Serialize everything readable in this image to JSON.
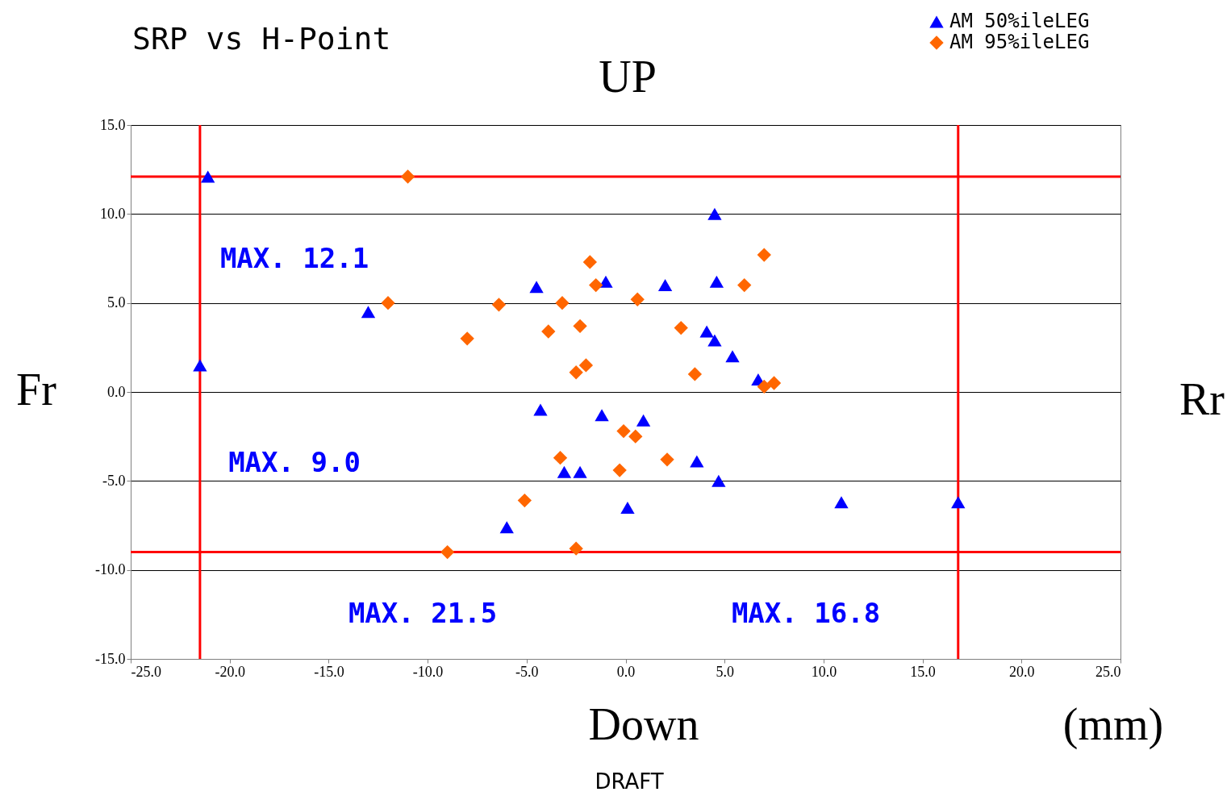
{
  "chart_data": {
    "type": "scatter",
    "title": "SRP vs H-Point",
    "xlim": [
      -25,
      25
    ],
    "xticks": [
      {
        "value": -25,
        "label": "-25.0"
      },
      {
        "value": -20,
        "label": "-20.0"
      },
      {
        "value": -15,
        "label": "-15.0"
      },
      {
        "value": -10,
        "label": "-10.0"
      },
      {
        "value": -5,
        "label": "-5.0"
      },
      {
        "value": 0,
        "label": "0.0"
      },
      {
        "value": 5,
        "label": "5.0"
      },
      {
        "value": 10,
        "label": "10.0"
      },
      {
        "value": 15,
        "label": "15.0"
      },
      {
        "value": 20,
        "label": "20.0"
      },
      {
        "value": 25,
        "label": "25.0"
      }
    ],
    "ylim": [
      -15,
      15
    ],
    "yticks": [
      {
        "value": -15,
        "label": "-15.0"
      },
      {
        "value": -10,
        "label": "-10.0"
      },
      {
        "value": -5,
        "label": "-5.0"
      },
      {
        "value": 0,
        "label": "0.0"
      },
      {
        "value": 5,
        "label": "5.0"
      },
      {
        "value": 10,
        "label": "10.0"
      },
      {
        "value": 15,
        "label": "15.0"
      }
    ],
    "grid": "y",
    "legend": "top right",
    "series": [
      {
        "name": "AM 50%ileLEG",
        "color": "#0000ff",
        "marker": "triangle",
        "x": [
          -21.1,
          -13.0,
          -21.5,
          -4.5,
          -4.3,
          -1.0,
          -1.2,
          0.9,
          2.0,
          4.5,
          4.6,
          4.1,
          4.5,
          5.4,
          6.7,
          -3.1,
          -2.3,
          -6.0,
          0.1,
          3.6,
          4.7,
          10.9,
          16.8
        ],
        "values": [
          12.1,
          4.5,
          1.5,
          5.9,
          -1.0,
          6.2,
          -1.3,
          -1.6,
          6.0,
          10.0,
          6.2,
          3.4,
          2.9,
          2.0,
          0.7,
          -4.5,
          -4.5,
          -7.6,
          -6.5,
          -3.9,
          -5.0,
          -6.2,
          -6.2
        ]
      },
      {
        "name": "AM 95%ileLEG",
        "color": "#ff6600",
        "marker": "diamond",
        "x": [
          -11.0,
          -12.0,
          -8.0,
          -6.4,
          -3.2,
          -3.9,
          -2.3,
          -1.8,
          -1.5,
          -2.0,
          -2.5,
          0.6,
          2.8,
          3.5,
          6.0,
          7.0,
          7.0,
          7.5,
          -0.1,
          0.5,
          2.1,
          -0.3,
          -3.3,
          -5.1,
          -2.5,
          -9.0
        ],
        "values": [
          12.1,
          5.0,
          3.0,
          4.9,
          5.0,
          3.4,
          3.7,
          7.3,
          6.0,
          1.5,
          1.1,
          5.2,
          3.6,
          1.0,
          6.0,
          7.7,
          0.3,
          0.5,
          -2.2,
          -2.5,
          -3.8,
          -4.4,
          -3.7,
          -6.1,
          -8.8,
          -9.0
        ]
      }
    ],
    "ref_lines": [
      {
        "axis": "y",
        "value": 12.1,
        "color": "#ff0000"
      },
      {
        "axis": "y",
        "value": -9.0,
        "color": "#ff0000"
      },
      {
        "axis": "x",
        "value": -21.5,
        "color": "#ff0000"
      },
      {
        "axis": "x",
        "value": 16.8,
        "color": "#ff0000"
      }
    ],
    "annotations": [
      "MAX. 12.1",
      "MAX. 9.0",
      "MAX. 21.5",
      "MAX. 16.8",
      "UP",
      "Down",
      "Fr",
      "Rr",
      "(mm)",
      "DRAFT"
    ]
  }
}
